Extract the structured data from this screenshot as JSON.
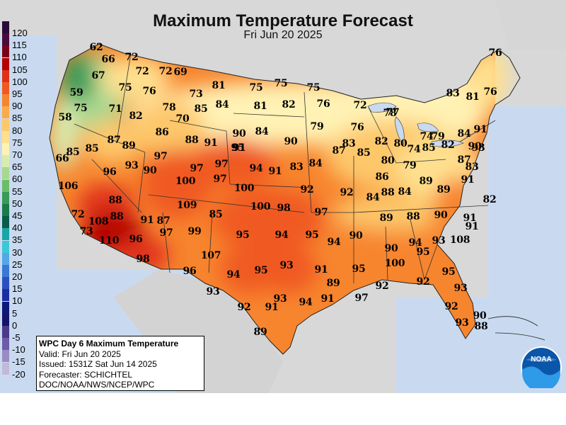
{
  "title": "Maximum Temperature Forecast",
  "subtitle": "Fri Jun 20 2025",
  "legend": {
    "values": [
      "120",
      "115",
      "110",
      "105",
      "100",
      "95",
      "90",
      "85",
      "80",
      "75",
      "70",
      "65",
      "60",
      "55",
      "50",
      "45",
      "40",
      "35",
      "30",
      "25",
      "20",
      "15",
      "10",
      "5",
      "0",
      "-5",
      "-10",
      "-15",
      "-20"
    ],
    "colors": [
      "#2a0a3a",
      "#4a0a3a",
      "#7a0018",
      "#b40000",
      "#e0301a",
      "#f05a20",
      "#f7852e",
      "#fbaa48",
      "#fdc76a",
      "#fee08f",
      "#fff2b4",
      "#d8ecb0",
      "#a8d890",
      "#6cbc6a",
      "#3a9a58",
      "#1c7a4a",
      "#0a5c48",
      "#1aa6a6",
      "#3ac8d8",
      "#52a8e6",
      "#3a78d8",
      "#2a50c0",
      "#1a2ea0",
      "#0a1a78",
      "#14146a",
      "#4a3a8a",
      "#6e5aa8",
      "#9a8ac4",
      "#c2b8dc"
    ]
  },
  "info": {
    "heading": "WPC Day 6 Maximum Temperature",
    "valid": "Valid: Fri Jun 20 2025",
    "issued": "Issued: 1531Z Sat Jun 14 2025",
    "forecaster": "Forecaster: SCHICHTEL",
    "agency": "DOC/NOAA/NWS/NCEP/WPC"
  },
  "logo_text": "NOAA",
  "temps": [
    "62",
    "66",
    "72",
    "67",
    "72",
    "72",
    "69",
    "59",
    "75",
    "76",
    "73",
    "81",
    "75",
    "75",
    "75",
    "58",
    "75",
    "71",
    "82",
    "78",
    "85",
    "84",
    "81",
    "82",
    "76",
    "72",
    "77",
    "76",
    "76",
    "70",
    "86",
    "88",
    "91",
    "90",
    "84",
    "79",
    "76",
    "78",
    "83",
    "81",
    "66",
    "85",
    "85",
    "87",
    "89",
    "97",
    "91",
    "95",
    "90",
    "87",
    "85",
    "83",
    "82",
    "80",
    "74",
    "74",
    "79",
    "84",
    "91",
    "93",
    "90",
    "96",
    "93",
    "90",
    "97",
    "97",
    "94",
    "91",
    "83",
    "84",
    "80",
    "79",
    "85",
    "82",
    "87",
    "83",
    "100",
    "97",
    "100",
    "92",
    "92",
    "86",
    "84",
    "89",
    "106",
    "88",
    "84",
    "88",
    "89",
    "91",
    "109",
    "85",
    "100",
    "98",
    "97",
    "89",
    "88",
    "90",
    "82",
    "72",
    "108",
    "88",
    "91",
    "87",
    "91",
    "91",
    "73",
    "97",
    "99",
    "95",
    "94",
    "95",
    "94",
    "90",
    "90",
    "94",
    "93",
    "108",
    "110",
    "96",
    "107",
    "98",
    "96",
    "95",
    "93",
    "91",
    "95",
    "100",
    "95",
    "95",
    "94",
    "92",
    "93",
    "89",
    "97",
    "92",
    "93",
    "92",
    "91",
    "93",
    "94",
    "91",
    "92",
    "90",
    "93",
    "88",
    "89"
  ]
}
